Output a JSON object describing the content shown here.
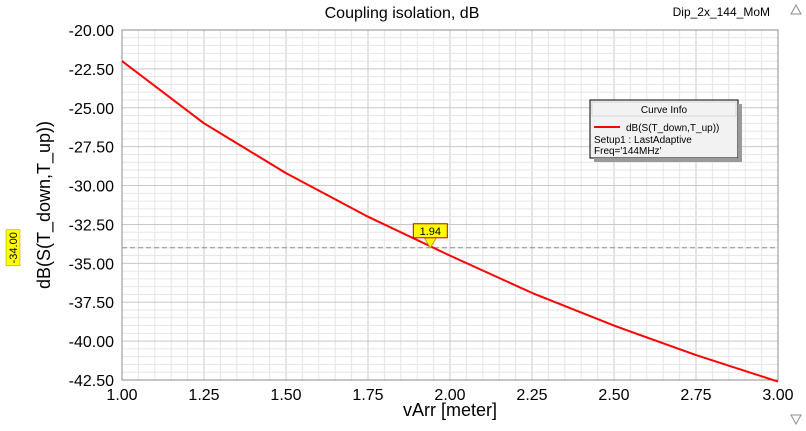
{
  "header": {
    "title": "Coupling isolation, dB",
    "project_name": "Dip_2x_144_MoM"
  },
  "chart_data": {
    "type": "line",
    "title": "Coupling isolation, dB",
    "xlabel": "vArr [meter]",
    "ylabel": "dB(S(T_down,T_up))",
    "xlim": [
      1.0,
      3.0
    ],
    "ylim": [
      -42.5,
      -20.0
    ],
    "x_ticks": [
      "1.00",
      "1.25",
      "1.50",
      "1.75",
      "2.00",
      "2.25",
      "2.50",
      "2.75",
      "3.00"
    ],
    "y_ticks": [
      "-20.00",
      "-22.50",
      "-25.00",
      "-27.50",
      "-30.00",
      "-32.50",
      "-35.00",
      "-37.50",
      "-40.00",
      "-42.50"
    ],
    "grid": true,
    "series": [
      {
        "name": "dB(S(T_down,T_up))",
        "color": "#ff0000",
        "x": [
          1.0,
          1.25,
          1.5,
          1.75,
          2.0,
          2.25,
          2.5,
          2.75,
          3.0
        ],
        "y": [
          -22.0,
          -26.0,
          -29.2,
          -32.0,
          -34.5,
          -36.9,
          -39.0,
          -40.9,
          -42.6
        ]
      }
    ],
    "legend": {
      "title": "Curve Info",
      "placement": "top-right",
      "entries": [
        "dB(S(T_down,T_up))",
        "Setup1 : LastAdaptive",
        "Freq='144MHz'"
      ]
    },
    "marker": {
      "x": 1.94,
      "y": -34.0,
      "x_label": "1.94",
      "y_label": "-34.00"
    }
  },
  "colors": {
    "curve": "#ff0000",
    "marker_fill": "#ffff00",
    "grid": "#d3d3d3"
  }
}
